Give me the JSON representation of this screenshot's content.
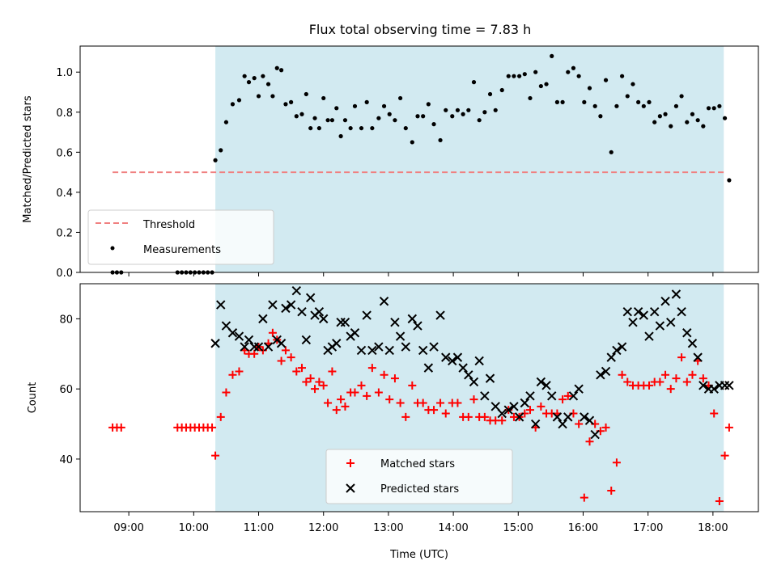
{
  "title": "Flux total observing time = 7.83 h",
  "colors": {
    "shade": "#add8e6",
    "threshold": "#f08080",
    "measurement": "#000000",
    "matched": "#ff0000",
    "predicted": "#000000"
  },
  "chart_data": [
    {
      "type": "scatter",
      "panel": "top",
      "ylabel": "Matched/Predicted stars",
      "xlabel": "",
      "ylim": [
        0.0,
        1.13
      ],
      "yticks": [
        0.0,
        0.2,
        0.4,
        0.6,
        0.8,
        1.0
      ],
      "ytick_labels": [
        "0.0",
        "0.2",
        "0.4",
        "0.6",
        "0.8",
        "1.0"
      ],
      "shaded_span": [
        "10:20",
        "18:10"
      ],
      "legend": {
        "position": "lower-left",
        "entries": [
          {
            "label": "Threshold",
            "style": "dashed-line"
          },
          {
            "label": "Measurements",
            "style": "dot"
          }
        ]
      },
      "threshold": {
        "name": "Threshold",
        "y": 0.5,
        "x_range": [
          "08:45",
          "18:10"
        ]
      },
      "series": [
        {
          "name": "Measurements",
          "x": [
            "08:45",
            "08:49",
            "08:53",
            "09:45",
            "09:49",
            "09:53",
            "09:57",
            "10:01",
            "10:05",
            "10:09",
            "10:13",
            "10:17",
            "10:20",
            "10:25",
            "10:30",
            "10:36",
            "10:42",
            "10:47",
            "10:51",
            "10:56",
            "11:00",
            "11:04",
            "11:09",
            "11:13",
            "11:17",
            "11:21",
            "11:25",
            "11:30",
            "11:35",
            "11:40",
            "11:44",
            "11:48",
            "11:52",
            "11:56",
            "12:00",
            "12:04",
            "12:08",
            "12:12",
            "12:16",
            "12:20",
            "12:25",
            "12:29",
            "12:35",
            "12:40",
            "12:45",
            "12:51",
            "12:56",
            "13:01",
            "13:06",
            "13:11",
            "13:16",
            "13:22",
            "13:27",
            "13:32",
            "13:37",
            "13:42",
            "13:48",
            "13:53",
            "13:59",
            "14:04",
            "14:09",
            "14:14",
            "14:19",
            "14:24",
            "14:29",
            "14:34",
            "14:39",
            "14:45",
            "14:51",
            "14:56",
            "15:01",
            "15:06",
            "15:11",
            "15:16",
            "15:21",
            "15:26",
            "15:31",
            "15:36",
            "15:41",
            "15:46",
            "15:51",
            "15:56",
            "16:01",
            "16:06",
            "16:11",
            "16:16",
            "16:21",
            "16:26",
            "16:31",
            "16:36",
            "16:41",
            "16:46",
            "16:51",
            "16:56",
            "17:01",
            "17:06",
            "17:11",
            "17:16",
            "17:21",
            "17:26",
            "17:31",
            "17:36",
            "17:41",
            "17:46",
            "17:51",
            "17:56",
            "18:01",
            "18:06",
            "18:11",
            "18:15"
          ],
          "y": [
            0.0,
            0.0,
            0.0,
            0.0,
            0.0,
            0.0,
            0.0,
            0.0,
            0.0,
            0.0,
            0.0,
            0.0,
            0.56,
            0.61,
            0.75,
            0.84,
            0.86,
            0.98,
            0.95,
            0.97,
            0.88,
            0.98,
            0.94,
            0.88,
            1.02,
            1.01,
            0.84,
            0.85,
            0.78,
            0.79,
            0.89,
            0.72,
            0.77,
            0.72,
            0.87,
            0.76,
            0.76,
            0.82,
            0.68,
            0.76,
            0.72,
            0.83,
            0.72,
            0.85,
            0.72,
            0.77,
            0.83,
            0.79,
            0.76,
            0.87,
            0.72,
            0.65,
            0.78,
            0.78,
            0.84,
            0.74,
            0.66,
            0.81,
            0.78,
            0.81,
            0.79,
            0.81,
            0.95,
            0.76,
            0.8,
            0.89,
            0.81,
            0.91,
            0.98,
            0.98,
            0.98,
            0.99,
            0.87,
            1.0,
            0.93,
            0.94,
            1.08,
            0.85,
            0.85,
            1.0,
            1.02,
            0.98,
            0.85,
            0.92,
            0.83,
            0.78,
            0.96,
            0.6,
            0.83,
            0.98,
            0.88,
            0.94,
            0.85,
            0.83,
            0.85,
            0.75,
            0.78,
            0.79,
            0.73,
            0.83,
            0.88,
            0.75,
            0.79,
            0.76,
            0.73,
            0.82,
            0.82,
            0.83,
            0.77,
            0.46
          ]
        }
      ]
    },
    {
      "type": "scatter",
      "panel": "bottom",
      "ylabel": "Count",
      "xlabel": "Time (UTC)",
      "xlim": [
        "08:15",
        "18:42"
      ],
      "xticks": [
        "09:00",
        "10:00",
        "11:00",
        "12:00",
        "13:00",
        "14:00",
        "15:00",
        "16:00",
        "17:00",
        "18:00"
      ],
      "ylim": [
        25,
        90
      ],
      "yticks": [
        40,
        60,
        80
      ],
      "ytick_labels": [
        "40",
        "60",
        "80"
      ],
      "shaded_span": [
        "10:20",
        "18:10"
      ],
      "legend": {
        "position": "lower-center",
        "entries": [
          {
            "label": "Matched stars",
            "style": "plus"
          },
          {
            "label": "Predicted stars",
            "style": "x"
          }
        ]
      },
      "series": [
        {
          "name": "Matched stars",
          "marker": "plus",
          "x": [
            "08:45",
            "08:49",
            "08:53",
            "09:45",
            "09:49",
            "09:53",
            "09:57",
            "10:01",
            "10:05",
            "10:09",
            "10:13",
            "10:17",
            "10:20",
            "10:25",
            "10:30",
            "10:36",
            "10:42",
            "10:47",
            "10:51",
            "10:56",
            "11:00",
            "11:04",
            "11:09",
            "11:13",
            "11:17",
            "11:21",
            "11:25",
            "11:30",
            "11:35",
            "11:40",
            "11:44",
            "11:48",
            "11:52",
            "11:56",
            "12:00",
            "12:04",
            "12:08",
            "12:12",
            "12:16",
            "12:20",
            "12:25",
            "12:29",
            "12:35",
            "12:40",
            "12:45",
            "12:51",
            "12:56",
            "13:01",
            "13:06",
            "13:11",
            "13:16",
            "13:22",
            "13:27",
            "13:32",
            "13:37",
            "13:42",
            "13:48",
            "13:53",
            "13:59",
            "14:04",
            "14:09",
            "14:14",
            "14:19",
            "14:24",
            "14:29",
            "14:34",
            "14:39",
            "14:45",
            "14:51",
            "14:56",
            "15:01",
            "15:06",
            "15:11",
            "15:16",
            "15:21",
            "15:26",
            "15:31",
            "15:36",
            "15:41",
            "15:46",
            "15:51",
            "15:56",
            "16:01",
            "16:06",
            "16:11",
            "16:16",
            "16:21",
            "16:26",
            "16:31",
            "16:36",
            "16:41",
            "16:46",
            "16:51",
            "16:56",
            "17:01",
            "17:06",
            "17:11",
            "17:16",
            "17:21",
            "17:26",
            "17:31",
            "17:36",
            "17:41",
            "17:46",
            "17:51",
            "17:56",
            "18:01",
            "18:06",
            "18:11",
            "18:15"
          ],
          "y": [
            49,
            49,
            49,
            49,
            49,
            49,
            49,
            49,
            49,
            49,
            49,
            49,
            41,
            52,
            59,
            64,
            65,
            71,
            70,
            70,
            72,
            71,
            73,
            76,
            74,
            68,
            71,
            69,
            65,
            66,
            62,
            63,
            60,
            62,
            61,
            56,
            65,
            54,
            57,
            55,
            59,
            59,
            61,
            58,
            66,
            59,
            64,
            57,
            63,
            56,
            52,
            61,
            56,
            56,
            54,
            54,
            56,
            53,
            56,
            56,
            52,
            52,
            57,
            52,
            52,
            51,
            51,
            51,
            54,
            52,
            52,
            53,
            54,
            49,
            55,
            53,
            53,
            53,
            57,
            58,
            53,
            50,
            29,
            45,
            50,
            48,
            49,
            31,
            39,
            64,
            62,
            61,
            61,
            61,
            61,
            62,
            62,
            64,
            60,
            63,
            69,
            62,
            64,
            68,
            63,
            61,
            53,
            28,
            41,
            49
          ]
        },
        {
          "name": "Predicted stars",
          "marker": "x",
          "x": [
            "10:20",
            "10:25",
            "10:30",
            "10:36",
            "10:42",
            "10:47",
            "10:51",
            "10:56",
            "11:00",
            "11:04",
            "11:09",
            "11:13",
            "11:17",
            "11:21",
            "11:25",
            "11:30",
            "11:35",
            "11:40",
            "11:44",
            "11:48",
            "11:52",
            "11:56",
            "12:00",
            "12:04",
            "12:08",
            "12:12",
            "12:16",
            "12:20",
            "12:25",
            "12:29",
            "12:35",
            "12:40",
            "12:45",
            "12:51",
            "12:56",
            "13:01",
            "13:06",
            "13:11",
            "13:16",
            "13:22",
            "13:27",
            "13:32",
            "13:37",
            "13:42",
            "13:48",
            "13:53",
            "13:59",
            "14:04",
            "14:09",
            "14:14",
            "14:19",
            "14:24",
            "14:29",
            "14:34",
            "14:39",
            "14:45",
            "14:51",
            "14:56",
            "15:01",
            "15:06",
            "15:11",
            "15:16",
            "15:21",
            "15:26",
            "15:31",
            "15:36",
            "15:41",
            "15:46",
            "15:51",
            "15:56",
            "16:01",
            "16:06",
            "16:11",
            "16:16",
            "16:21",
            "16:26",
            "16:31",
            "16:36",
            "16:41",
            "16:46",
            "16:51",
            "16:56",
            "17:01",
            "17:06",
            "17:11",
            "17:16",
            "17:21",
            "17:26",
            "17:31",
            "17:36",
            "17:41",
            "17:46",
            "17:51",
            "17:56",
            "18:01",
            "18:06",
            "18:11",
            "18:15"
          ],
          "y": [
            73,
            84,
            78,
            76,
            75,
            72,
            74,
            72,
            72,
            80,
            72,
            84,
            74,
            73,
            83,
            84,
            88,
            82,
            74,
            86,
            81,
            82,
            80,
            71,
            72,
            73,
            79,
            79,
            75,
            76,
            71,
            81,
            71,
            72,
            85,
            71,
            79,
            75,
            72,
            80,
            78,
            71,
            66,
            72,
            81,
            69,
            68,
            69,
            66,
            64,
            62,
            68,
            58,
            63,
            55,
            53,
            54,
            55,
            52,
            56,
            58,
            50,
            62,
            61,
            58,
            52,
            50,
            52,
            58,
            60,
            52,
            51,
            47,
            64,
            65,
            69,
            71,
            72,
            82,
            79,
            82,
            81,
            75,
            82,
            78,
            85,
            79,
            87,
            82,
            76,
            73,
            69,
            61,
            60,
            60,
            61,
            61,
            61
          ]
        }
      ]
    }
  ]
}
